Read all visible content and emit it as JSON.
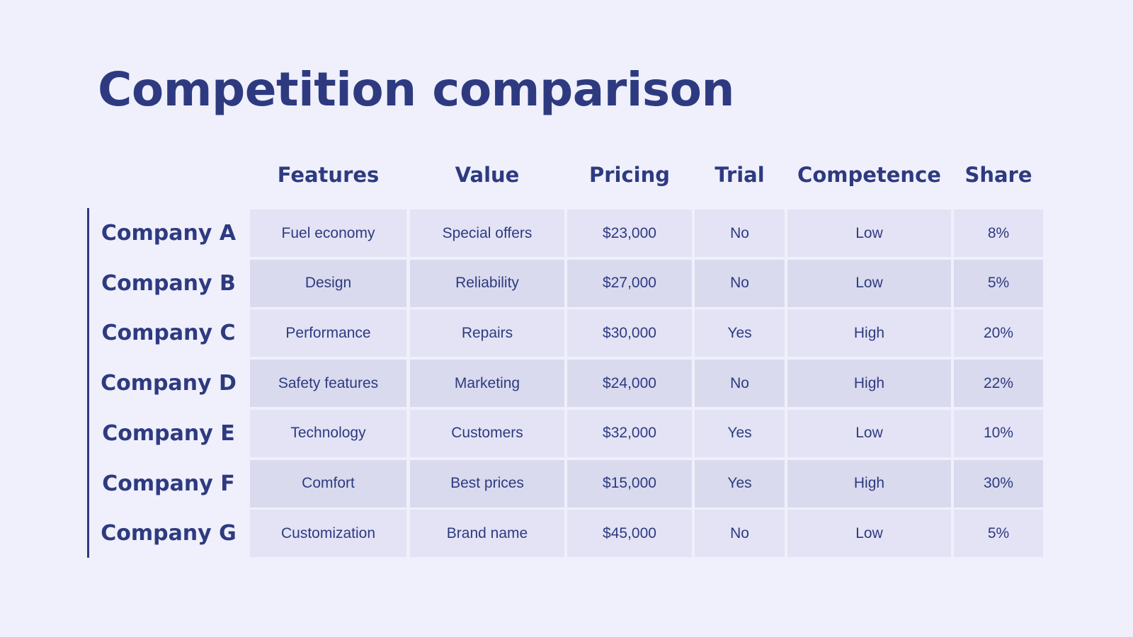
{
  "title": "Competition comparison",
  "table": {
    "headers": [
      "Features",
      "Value",
      "Pricing",
      "Trial",
      "Competence",
      "Share"
    ],
    "rows": [
      [
        "Company A",
        "Fuel economy",
        "Special offers",
        "$23,000",
        "No",
        "Low",
        "8%"
      ],
      [
        "Company B",
        "Design",
        "Reliability",
        "$27,000",
        "No",
        "Low",
        "5%"
      ],
      [
        "Company C",
        "Performance",
        "Repairs",
        "$30,000",
        "Yes",
        "High",
        "20%"
      ],
      [
        "Company D",
        "Safety features",
        "Marketing",
        "$24,000",
        "No",
        "High",
        "22%"
      ],
      [
        "Company E",
        "Technology",
        "Customers",
        "$32,000",
        "Yes",
        "Low",
        "10%"
      ],
      [
        "Company F",
        "Comfort",
        "Best prices",
        "$15,000",
        "Yes",
        "High",
        "30%"
      ],
      [
        "Company G",
        "Customization",
        "Brand name",
        "$45,000",
        "No",
        "Low",
        "5%"
      ]
    ]
  }
}
